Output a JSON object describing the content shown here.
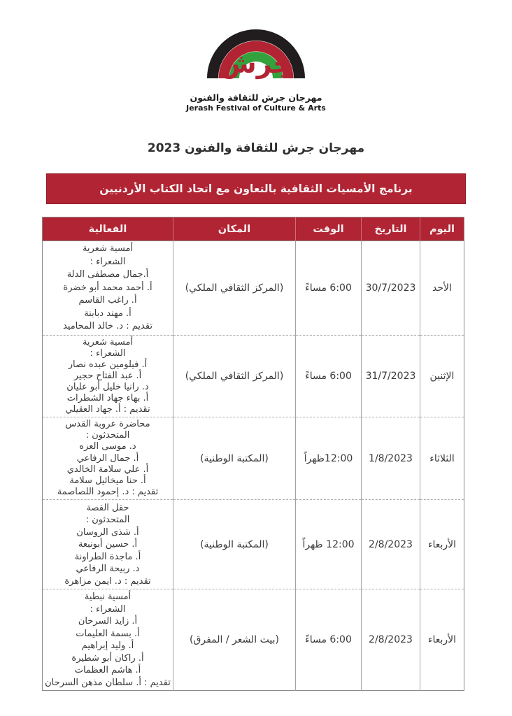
{
  "logo": {
    "wordmark": "جرش",
    "caption_ar": "مهرجان جرش للثقافة والفنون",
    "caption_en": "Jerash Festival of Culture & Arts",
    "colors": {
      "arc_outer": "#211d1e",
      "arc_middle": "#b22433",
      "arc_inner": "#33a23d",
      "wordmark": "#b22433"
    }
  },
  "title": "مهرجان جرش للثقافة والفنون 2023",
  "banner": "برنامج الأمسيات الثقافية بالتعاون مع اتحاد الكتاب الأردنيين",
  "accent_color": "#b12434",
  "table": {
    "headers": [
      "اليوم",
      "التاريخ",
      "الوقت",
      "المكان",
      "الفعالية"
    ],
    "rows": [
      {
        "day": "الأحد",
        "date": "30/7/2023",
        "time": "6:00 مساءً",
        "place": "(المركز الثقافي الملكي)",
        "activity": [
          "أمسية شعرية",
          "الشعراء :",
          "أ.جمال مصطفى الدلة",
          "أ. أحمد محمد أبو خضرة",
          "أ. راغب القاسم",
          "أ. مهند دبابنة",
          "تقديم : د. خالد المحاميد"
        ]
      },
      {
        "day": "الإثنين",
        "date": "31/7/2023",
        "time": "6:00 مساءً",
        "place": "(المركز الثقافي الملكي)",
        "activity": [
          "أمسية شعرية",
          "الشعراء :",
          "أ. فيلومين عبده نصار",
          "أ. عبد الفتاح حجير",
          "د. رانيا خليل أبو عليان",
          "أ. بهاء جهاد الشطرات",
          "تقديم : أ. جهاد العقيلي"
        ]
      },
      {
        "day": "الثلاثاء",
        "date": "1/8/2023",
        "time": "12:00ظهراً",
        "place": "(المكتبة الوطنية)",
        "activity": [
          "محاضرة عروبة القدس",
          "المتحدثون :",
          "د. موسى العزه",
          "أ. جمال الرفاعي",
          "أ. علي سلامة الخالدي",
          "أ. حنا ميخائيل سلامة",
          "تقديم : د. إحمود اللصاصمة"
        ]
      },
      {
        "day": "الأربعاء",
        "date": "2/8/2023",
        "time": "12:00 ظهراً",
        "place": "(المكتبة الوطنية)",
        "activity": [
          "حقل القصة",
          "المتحدثون :",
          "أ. شذى الروسان",
          "أ. حسين أبونبعة",
          "أ. ماجدة الطراونة",
          "د. ربيحة الرفاعي",
          "تقديم : د. ايمن مزاهرة"
        ]
      },
      {
        "day": "الأربعاء",
        "date": "2/8/2023",
        "time": "6:00 مساءً",
        "place": "(بيت الشعر / المفرق)",
        "activity": [
          "أمسية نبطية",
          "الشعراء :",
          "أ. زايد السرحان",
          "أ. بسمة العليمات",
          "أ. وليد إبراهيم",
          "أ. راكان أبو شطيرة",
          "أ. هاشم العظمات",
          "تقديم : أ. سلطان مذهن السرحان"
        ]
      }
    ]
  }
}
